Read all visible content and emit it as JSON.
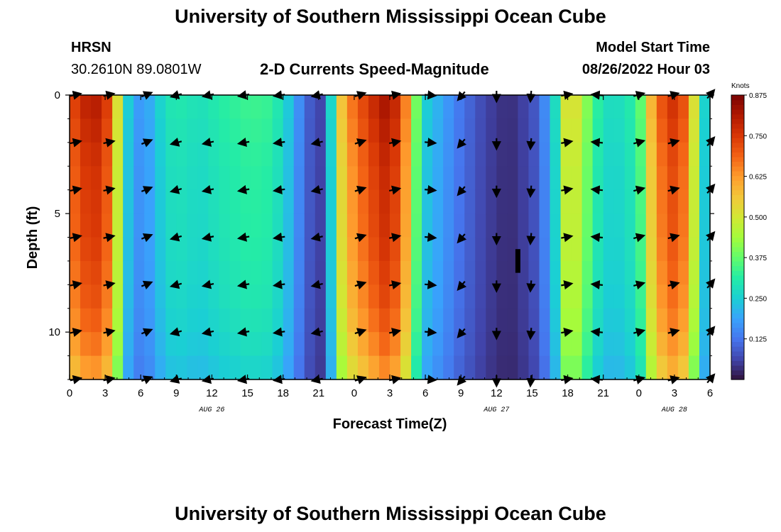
{
  "header": {
    "title_top": "University of Southern Mississippi Ocean Cube",
    "station": "HRSN",
    "coords": "30.2610N  89.0801W",
    "subtitle": "2-D Currents Speed-Magnitude",
    "model_label": "Model Start Time",
    "model_time": "08/26/2022 Hour 03",
    "title_bottom": "University of Southern Mississippi Ocean Cube"
  },
  "chart_data": {
    "type": "heatmap",
    "title": "2-D Currents Speed-Magnitude",
    "xlabel": "Forecast Time(Z)",
    "ylabel": "Depth (ft)",
    "x_tick_labels": [
      "0",
      "3",
      "6",
      "9",
      "12",
      "15",
      "18",
      "21",
      "0",
      "3",
      "6",
      "9",
      "12",
      "15",
      "18",
      "21",
      "0",
      "3",
      "6"
    ],
    "x_ticks_hours": [
      0,
      3,
      6,
      9,
      12,
      15,
      18,
      21,
      24,
      27,
      30,
      33,
      36,
      39,
      42,
      45,
      48,
      51,
      54
    ],
    "xlim_hours": [
      0,
      54
    ],
    "date_labels": [
      {
        "label": "AUG 26",
        "hour": 12
      },
      {
        "label": "AUG 27",
        "hour": 36
      },
      {
        "label": "AUG 28",
        "hour": 51
      }
    ],
    "y_tick_labels": [
      "0",
      "5",
      "10"
    ],
    "y_ticks": [
      0,
      5,
      10
    ],
    "ylim": [
      0,
      12
    ],
    "colorbar": {
      "unit": "Knots",
      "tick_labels": [
        "0.875",
        "0.750",
        "0.625",
        "0.500",
        "0.375",
        "0.250",
        "0.125"
      ],
      "ticks": [
        0.875,
        0.75,
        0.625,
        0.5,
        0.375,
        0.25,
        0.125
      ],
      "range": [
        0,
        0.875
      ],
      "colors": [
        "#30123b",
        "#4145ab",
        "#4675ed",
        "#39a2fc",
        "#1bcfd4",
        "#24eca6",
        "#61fc6c",
        "#a4fc3b",
        "#d1e834",
        "#f3c63a",
        "#fe9b2d",
        "#f36315",
        "#d93806",
        "#b11901",
        "#7a0403"
      ]
    },
    "speed_profile": [
      {
        "hour": 0,
        "speed": 0.67
      },
      {
        "hour": 1,
        "speed": 0.74
      },
      {
        "hour": 2,
        "speed": 0.77
      },
      {
        "hour": 3,
        "speed": 0.74
      },
      {
        "hour": 3.7,
        "speed": 0.58
      },
      {
        "hour": 4.4,
        "speed": 0.4
      },
      {
        "hour": 5.0,
        "speed": 0.22
      },
      {
        "hour": 6,
        "speed": 0.16
      },
      {
        "hour": 7,
        "speed": 0.2
      },
      {
        "hour": 8,
        "speed": 0.27
      },
      {
        "hour": 9,
        "speed": 0.29
      },
      {
        "hour": 11,
        "speed": 0.27
      },
      {
        "hour": 13,
        "speed": 0.3
      },
      {
        "hour": 15,
        "speed": 0.32
      },
      {
        "hour": 16.5,
        "speed": 0.32
      },
      {
        "hour": 18,
        "speed": 0.27
      },
      {
        "hour": 19,
        "speed": 0.18
      },
      {
        "hour": 20,
        "speed": 0.1
      },
      {
        "hour": 21,
        "speed": 0.05
      },
      {
        "hour": 21.7,
        "speed": 0.1
      },
      {
        "hour": 22.3,
        "speed": 0.36
      },
      {
        "hour": 23,
        "speed": 0.55
      },
      {
        "hour": 24,
        "speed": 0.65
      },
      {
        "hour": 25.5,
        "speed": 0.73
      },
      {
        "hour": 26.5,
        "speed": 0.78
      },
      {
        "hour": 27.5,
        "speed": 0.74
      },
      {
        "hour": 28.5,
        "speed": 0.6
      },
      {
        "hour": 29.2,
        "speed": 0.38
      },
      {
        "hour": 30,
        "speed": 0.24
      },
      {
        "hour": 31.5,
        "speed": 0.18
      },
      {
        "hour": 33,
        "speed": 0.12
      },
      {
        "hour": 35,
        "speed": 0.06
      },
      {
        "hour": 37,
        "speed": 0.03
      },
      {
        "hour": 39,
        "speed": 0.07
      },
      {
        "hour": 40,
        "speed": 0.14
      },
      {
        "hour": 41,
        "speed": 0.27
      },
      {
        "hour": 42,
        "speed": 0.52
      },
      {
        "hour": 43,
        "speed": 0.47
      },
      {
        "hour": 44,
        "speed": 0.34
      },
      {
        "hour": 45,
        "speed": 0.27
      },
      {
        "hour": 46,
        "speed": 0.26
      },
      {
        "hour": 47,
        "speed": 0.28
      },
      {
        "hour": 48,
        "speed": 0.32
      },
      {
        "hour": 49,
        "speed": 0.55
      },
      {
        "hour": 50,
        "speed": 0.68
      },
      {
        "hour": 51,
        "speed": 0.73
      },
      {
        "hour": 52,
        "speed": 0.66
      },
      {
        "hour": 53,
        "speed": 0.4
      },
      {
        "hour": 54,
        "speed": 0.12
      }
    ],
    "depth_factor": [
      {
        "depth": 0,
        "factor": 1.06
      },
      {
        "depth": 3,
        "factor": 1.0
      },
      {
        "depth": 6,
        "factor": 0.98
      },
      {
        "depth": 9,
        "factor": 0.93
      },
      {
        "depth": 11,
        "factor": 0.86
      },
      {
        "depth": 12,
        "factor": 0.8
      }
    ],
    "vector_hours": [
      0.4,
      3.2,
      6.4,
      9.1,
      11.8,
      14.8,
      17.8,
      21.0,
      24.4,
      27.3,
      30.3,
      33.1,
      36.0,
      38.9,
      41.8,
      44.6,
      47.9,
      50.8,
      54.0
    ],
    "vector_depths": [
      0,
      2,
      4,
      6,
      8,
      10,
      12
    ],
    "vector_angles_deg": [
      -12,
      -12,
      -22,
      165,
      168,
      170,
      172,
      168,
      -18,
      -12,
      5,
      130,
      90,
      95,
      -10,
      185,
      -15,
      -15,
      -50
    ],
    "marker": {
      "hour": 37.8,
      "depth_top": 6.5,
      "depth_bottom": 7.5
    }
  }
}
